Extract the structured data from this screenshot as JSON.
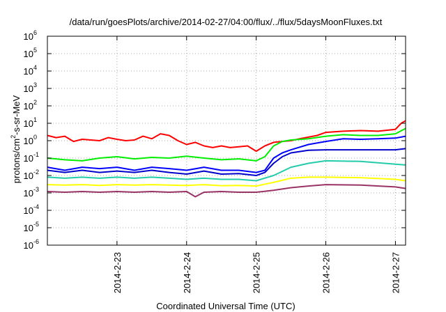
{
  "chart_data": {
    "type": "line",
    "title": "/data/run/goesPlots/archive/2014-02-27/04:00/flux/../flux/5daysMoonFluxes.txt",
    "xlabel": "Coordinated Universal Time (UTC)",
    "ylabel": "protons/cm2-s-sr-MeV",
    "ylabel_parts": {
      "base": "protons/cm",
      "sup": "2",
      "rest": "-s-sr-MeV"
    },
    "yscale": "log",
    "ylim_exponents": [
      -6,
      6
    ],
    "y_tick_base": "10",
    "y_tick_exponents": [
      "-6",
      "-5",
      "-4",
      "-3",
      "-2",
      "-1",
      "0",
      "1",
      "2",
      "3",
      "4",
      "5",
      "6"
    ],
    "xlim_days": [
      "2014-02-22",
      "2014-02-27T03:30"
    ],
    "x_ticks": [
      "2014-2-23",
      "2014-2-24",
      "2014-2-25",
      "2014-2-26",
      "2014-2-27"
    ],
    "grid": true,
    "legend": "none",
    "series": [
      {
        "color": "#ff0000",
        "points": [
          [
            "2014-02-22T00:00",
            2.0
          ],
          [
            "2014-02-22T03:00",
            1.5
          ],
          [
            "2014-02-22T06:00",
            1.8
          ],
          [
            "2014-02-22T09:00",
            0.9
          ],
          [
            "2014-02-22T12:00",
            1.2
          ],
          [
            "2014-02-22T15:00",
            1.1
          ],
          [
            "2014-02-22T18:00",
            1.0
          ],
          [
            "2014-02-22T21:00",
            1.5
          ],
          [
            "2014-02-23T00:00",
            1.2
          ],
          [
            "2014-02-23T03:00",
            1.0
          ],
          [
            "2014-02-23T06:00",
            1.1
          ],
          [
            "2014-02-23T09:00",
            1.8
          ],
          [
            "2014-02-23T12:00",
            1.3
          ],
          [
            "2014-02-23T15:00",
            2.5
          ],
          [
            "2014-02-23T18:00",
            2.0
          ],
          [
            "2014-02-23T21:00",
            1.0
          ],
          [
            "2014-02-24T00:00",
            0.6
          ],
          [
            "2014-02-24T03:00",
            0.8
          ],
          [
            "2014-02-24T06:00",
            0.5
          ],
          [
            "2014-02-24T09:00",
            0.4
          ],
          [
            "2014-02-24T12:00",
            0.5
          ],
          [
            "2014-02-24T15:00",
            0.4
          ],
          [
            "2014-02-24T18:00",
            0.45
          ],
          [
            "2014-02-24T21:00",
            0.5
          ],
          [
            "2014-02-25T00:00",
            0.25
          ],
          [
            "2014-02-25T03:00",
            0.5
          ],
          [
            "2014-02-25T06:00",
            0.8
          ],
          [
            "2014-02-25T09:00",
            0.9
          ],
          [
            "2014-02-25T12:00",
            1.0
          ],
          [
            "2014-02-25T15:00",
            1.3
          ],
          [
            "2014-02-25T18:00",
            1.6
          ],
          [
            "2014-02-25T21:00",
            2.0
          ],
          [
            "2014-02-26T00:00",
            3.0
          ],
          [
            "2014-02-26T06:00",
            3.5
          ],
          [
            "2014-02-26T12:00",
            3.8
          ],
          [
            "2014-02-26T18:00",
            3.5
          ],
          [
            "2014-02-27T00:00",
            4.5
          ],
          [
            "2014-02-27T02:00",
            10.0
          ],
          [
            "2014-02-27T03:30",
            14.0
          ]
        ]
      },
      {
        "color": "#00ee00",
        "points": [
          [
            "2014-02-22T00:00",
            0.1
          ],
          [
            "2014-02-22T06:00",
            0.08
          ],
          [
            "2014-02-22T12:00",
            0.07
          ],
          [
            "2014-02-22T18:00",
            0.1
          ],
          [
            "2014-02-23T00:00",
            0.12
          ],
          [
            "2014-02-23T06:00",
            0.09
          ],
          [
            "2014-02-23T12:00",
            0.11
          ],
          [
            "2014-02-23T18:00",
            0.1
          ],
          [
            "2014-02-24T00:00",
            0.13
          ],
          [
            "2014-02-24T06:00",
            0.1
          ],
          [
            "2014-02-24T12:00",
            0.08
          ],
          [
            "2014-02-24T18:00",
            0.09
          ],
          [
            "2014-02-25T00:00",
            0.07
          ],
          [
            "2014-02-25T03:00",
            0.12
          ],
          [
            "2014-02-25T06:00",
            0.5
          ],
          [
            "2014-02-25T09:00",
            0.9
          ],
          [
            "2014-02-25T12:00",
            1.1
          ],
          [
            "2014-02-25T18:00",
            1.3
          ],
          [
            "2014-02-26T00:00",
            1.8
          ],
          [
            "2014-02-26T06:00",
            2.2
          ],
          [
            "2014-02-26T12:00",
            2.0
          ],
          [
            "2014-02-26T18:00",
            2.0
          ],
          [
            "2014-02-27T00:00",
            2.5
          ],
          [
            "2014-02-27T03:30",
            5.0
          ]
        ]
      },
      {
        "color": "#0000ff",
        "points": [
          [
            "2014-02-22T00:00",
            0.03
          ],
          [
            "2014-02-22T06:00",
            0.02
          ],
          [
            "2014-02-22T12:00",
            0.03
          ],
          [
            "2014-02-22T18:00",
            0.025
          ],
          [
            "2014-02-23T00:00",
            0.03
          ],
          [
            "2014-02-23T06:00",
            0.02
          ],
          [
            "2014-02-23T12:00",
            0.03
          ],
          [
            "2014-02-23T18:00",
            0.025
          ],
          [
            "2014-02-24T00:00",
            0.02
          ],
          [
            "2014-02-24T06:00",
            0.03
          ],
          [
            "2014-02-24T12:00",
            0.02
          ],
          [
            "2014-02-24T18:00",
            0.02
          ],
          [
            "2014-02-25T00:00",
            0.015
          ],
          [
            "2014-02-25T03:00",
            0.02
          ],
          [
            "2014-02-25T06:00",
            0.1
          ],
          [
            "2014-02-25T09:00",
            0.2
          ],
          [
            "2014-02-25T12:00",
            0.3
          ],
          [
            "2014-02-25T18:00",
            0.6
          ],
          [
            "2014-02-26T00:00",
            0.9
          ],
          [
            "2014-02-26T06:00",
            1.3
          ],
          [
            "2014-02-26T12:00",
            1.2
          ],
          [
            "2014-02-26T18:00",
            1.3
          ],
          [
            "2014-02-27T00:00",
            1.4
          ],
          [
            "2014-02-27T03:30",
            1.8
          ]
        ]
      },
      {
        "color": "#0000cc",
        "points": [
          [
            "2014-02-22T00:00",
            0.02
          ],
          [
            "2014-02-22T06:00",
            0.015
          ],
          [
            "2014-02-22T12:00",
            0.02
          ],
          [
            "2014-02-22T18:00",
            0.015
          ],
          [
            "2014-02-23T00:00",
            0.018
          ],
          [
            "2014-02-23T06:00",
            0.015
          ],
          [
            "2014-02-23T12:00",
            0.02
          ],
          [
            "2014-02-23T18:00",
            0.015
          ],
          [
            "2014-02-24T00:00",
            0.012
          ],
          [
            "2014-02-24T06:00",
            0.018
          ],
          [
            "2014-02-24T12:00",
            0.012
          ],
          [
            "2014-02-24T18:00",
            0.013
          ],
          [
            "2014-02-25T00:00",
            0.01
          ],
          [
            "2014-02-25T03:00",
            0.015
          ],
          [
            "2014-02-25T06:00",
            0.05
          ],
          [
            "2014-02-25T09:00",
            0.12
          ],
          [
            "2014-02-25T12:00",
            0.2
          ],
          [
            "2014-02-25T18:00",
            0.28
          ],
          [
            "2014-02-26T00:00",
            0.3
          ],
          [
            "2014-02-26T12:00",
            0.3
          ],
          [
            "2014-02-27T00:00",
            0.3
          ],
          [
            "2014-02-27T03:30",
            0.35
          ]
        ]
      },
      {
        "color": "#22ccaa",
        "points": [
          [
            "2014-02-22T00:00",
            0.008
          ],
          [
            "2014-02-22T06:00",
            0.007
          ],
          [
            "2014-02-22T12:00",
            0.008
          ],
          [
            "2014-02-22T18:00",
            0.007
          ],
          [
            "2014-02-23T00:00",
            0.008
          ],
          [
            "2014-02-23T06:00",
            0.007
          ],
          [
            "2014-02-23T12:00",
            0.008
          ],
          [
            "2014-02-23T18:00",
            0.007
          ],
          [
            "2014-02-24T00:00",
            0.006
          ],
          [
            "2014-02-24T06:00",
            0.007
          ],
          [
            "2014-02-24T12:00",
            0.006
          ],
          [
            "2014-02-24T18:00",
            0.006
          ],
          [
            "2014-02-25T00:00",
            0.005
          ],
          [
            "2014-02-25T06:00",
            0.01
          ],
          [
            "2014-02-25T12:00",
            0.03
          ],
          [
            "2014-02-25T18:00",
            0.05
          ],
          [
            "2014-02-26T00:00",
            0.07
          ],
          [
            "2014-02-26T12:00",
            0.065
          ],
          [
            "2014-02-27T00:00",
            0.045
          ],
          [
            "2014-02-27T03:30",
            0.04
          ]
        ]
      },
      {
        "color": "#ffff00",
        "points": [
          [
            "2014-02-22T00:00",
            0.003
          ],
          [
            "2014-02-22T06:00",
            0.0028
          ],
          [
            "2014-02-22T12:00",
            0.003
          ],
          [
            "2014-02-22T18:00",
            0.0027
          ],
          [
            "2014-02-23T00:00",
            0.003
          ],
          [
            "2014-02-23T06:00",
            0.0028
          ],
          [
            "2014-02-23T12:00",
            0.003
          ],
          [
            "2014-02-23T18:00",
            0.0028
          ],
          [
            "2014-02-24T00:00",
            0.0027
          ],
          [
            "2014-02-24T06:00",
            0.003
          ],
          [
            "2014-02-24T12:00",
            0.0026
          ],
          [
            "2014-02-24T18:00",
            0.0027
          ],
          [
            "2014-02-25T00:00",
            0.0025
          ],
          [
            "2014-02-25T06:00",
            0.004
          ],
          [
            "2014-02-25T12:00",
            0.007
          ],
          [
            "2014-02-25T18:00",
            0.008
          ],
          [
            "2014-02-26T00:00",
            0.008
          ],
          [
            "2014-02-26T12:00",
            0.0075
          ],
          [
            "2014-02-27T00:00",
            0.006
          ],
          [
            "2014-02-27T03:30",
            0.005
          ]
        ]
      },
      {
        "color": "#993366",
        "points": [
          [
            "2014-02-22T00:00",
            0.0012
          ],
          [
            "2014-02-22T06:00",
            0.0011
          ],
          [
            "2014-02-22T12:00",
            0.0012
          ],
          [
            "2014-02-22T18:00",
            0.0011
          ],
          [
            "2014-02-23T00:00",
            0.0012
          ],
          [
            "2014-02-23T06:00",
            0.0011
          ],
          [
            "2014-02-23T12:00",
            0.0012
          ],
          [
            "2014-02-23T18:00",
            0.0011
          ],
          [
            "2014-02-24T00:00",
            0.0012
          ],
          [
            "2014-02-24T03:00",
            0.0006
          ],
          [
            "2014-02-24T06:00",
            0.0011
          ],
          [
            "2014-02-24T12:00",
            0.0012
          ],
          [
            "2014-02-24T18:00",
            0.0011
          ],
          [
            "2014-02-25T00:00",
            0.0011
          ],
          [
            "2014-02-25T06:00",
            0.0014
          ],
          [
            "2014-02-25T12:00",
            0.002
          ],
          [
            "2014-02-25T18:00",
            0.0025
          ],
          [
            "2014-02-26T00:00",
            0.003
          ],
          [
            "2014-02-26T12:00",
            0.0028
          ],
          [
            "2014-02-27T00:00",
            0.0022
          ],
          [
            "2014-02-27T03:30",
            0.0018
          ]
        ]
      }
    ]
  }
}
